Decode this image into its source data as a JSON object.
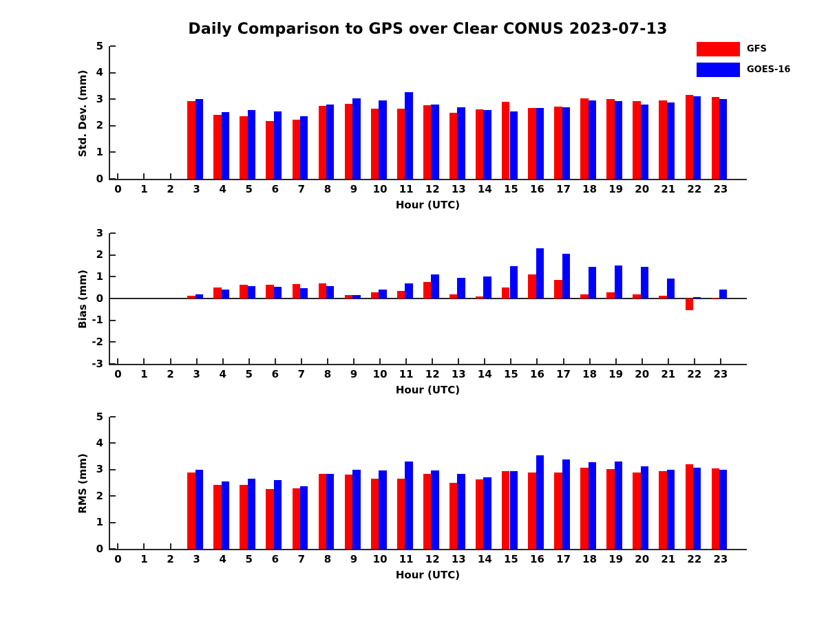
{
  "title": "Daily Comparison to GPS over Clear CONUS 2023-07-13",
  "legend": {
    "items": [
      {
        "label": "GFS",
        "color": "#ff0000"
      },
      {
        "label": "GOES-16",
        "color": "#0000ff"
      }
    ]
  },
  "colors": {
    "gfs": "#ff0000",
    "goes16": "#0000ff",
    "axis": "#262626",
    "text": "#000000"
  },
  "chart_data": [
    {
      "type": "bar",
      "title": "",
      "ylabel": "Std. Dev. (mm)",
      "xlabel": "Hour (UTC)",
      "ylim": [
        0,
        5
      ],
      "yticks": [
        0,
        1,
        2,
        3,
        4,
        5
      ],
      "xlim": [
        -0.3,
        24
      ],
      "grid": false,
      "legend_position": "upper-right-outside",
      "categories": [
        "0",
        "1",
        "2",
        "3",
        "4",
        "5",
        "6",
        "7",
        "8",
        "9",
        "10",
        "11",
        "12",
        "13",
        "14",
        "15",
        "16",
        "17",
        "18",
        "19",
        "20",
        "21",
        "22",
        "23"
      ],
      "series": [
        {
          "name": "GFS",
          "color": "#ff0000",
          "values": [
            null,
            null,
            null,
            2.92,
            2.4,
            2.37,
            2.18,
            2.22,
            2.75,
            2.83,
            2.65,
            2.65,
            2.77,
            2.5,
            2.62,
            2.89,
            2.66,
            2.73,
            3.03,
            3.0,
            2.92,
            2.95,
            3.15,
            3.08
          ]
        },
        {
          "name": "GOES-16",
          "color": "#0000ff",
          "values": [
            null,
            null,
            null,
            3.0,
            2.52,
            2.6,
            2.55,
            2.35,
            2.8,
            3.02,
            2.96,
            3.27,
            2.8,
            2.7,
            2.6,
            2.55,
            2.68,
            2.7,
            2.95,
            2.92,
            2.8,
            2.87,
            3.1,
            3.0
          ]
        }
      ]
    },
    {
      "type": "bar",
      "title": "",
      "ylabel": "Bias (mm)",
      "xlabel": "Hour (UTC)",
      "ylim": [
        -3,
        3
      ],
      "yticks": [
        -3,
        -2,
        -1,
        0,
        1,
        2,
        3
      ],
      "xlim": [
        -0.3,
        24
      ],
      "grid": false,
      "zero_line": true,
      "categories": [
        "0",
        "1",
        "2",
        "3",
        "4",
        "5",
        "6",
        "7",
        "8",
        "9",
        "10",
        "11",
        "12",
        "13",
        "14",
        "15",
        "16",
        "17",
        "18",
        "19",
        "20",
        "21",
        "22",
        "23"
      ],
      "series": [
        {
          "name": "GFS",
          "color": "#ff0000",
          "values": [
            null,
            null,
            null,
            0.12,
            0.5,
            0.63,
            0.62,
            0.66,
            0.68,
            0.15,
            0.3,
            0.35,
            0.75,
            0.18,
            0.1,
            0.5,
            1.1,
            0.85,
            0.18,
            0.3,
            0.2,
            0.12,
            -0.55,
            0.03
          ]
        },
        {
          "name": "GOES-16",
          "color": "#0000ff",
          "values": [
            null,
            null,
            null,
            0.2,
            0.42,
            0.57,
            0.53,
            0.47,
            0.56,
            0.15,
            0.4,
            0.7,
            1.12,
            0.95,
            1.0,
            1.5,
            2.3,
            2.05,
            1.45,
            1.52,
            1.45,
            0.93,
            0.05,
            0.42
          ]
        }
      ]
    },
    {
      "type": "bar",
      "title": "",
      "ylabel": "RMS (mm)",
      "xlabel": "Hour (UTC)",
      "ylim": [
        0,
        5
      ],
      "yticks": [
        0,
        1,
        2,
        3,
        4,
        5
      ],
      "xlim": [
        -0.3,
        24
      ],
      "grid": false,
      "categories": [
        "0",
        "1",
        "2",
        "3",
        "4",
        "5",
        "6",
        "7",
        "8",
        "9",
        "10",
        "11",
        "12",
        "13",
        "14",
        "15",
        "16",
        "17",
        "18",
        "19",
        "20",
        "21",
        "22",
        "23"
      ],
      "series": [
        {
          "name": "GFS",
          "color": "#ff0000",
          "values": [
            null,
            null,
            null,
            2.9,
            2.43,
            2.42,
            2.27,
            2.3,
            2.83,
            2.81,
            2.65,
            2.65,
            2.85,
            2.5,
            2.62,
            2.93,
            2.9,
            2.88,
            3.06,
            3.03,
            2.9,
            2.93,
            3.2,
            3.05
          ]
        },
        {
          "name": "GOES-16",
          "color": "#0000ff",
          "values": [
            null,
            null,
            null,
            3.0,
            2.55,
            2.65,
            2.6,
            2.37,
            2.85,
            3.0,
            2.98,
            3.32,
            2.98,
            2.83,
            2.72,
            2.95,
            3.55,
            3.39,
            3.28,
            3.31,
            3.12,
            3.0,
            3.08,
            3.0
          ]
        }
      ]
    }
  ]
}
